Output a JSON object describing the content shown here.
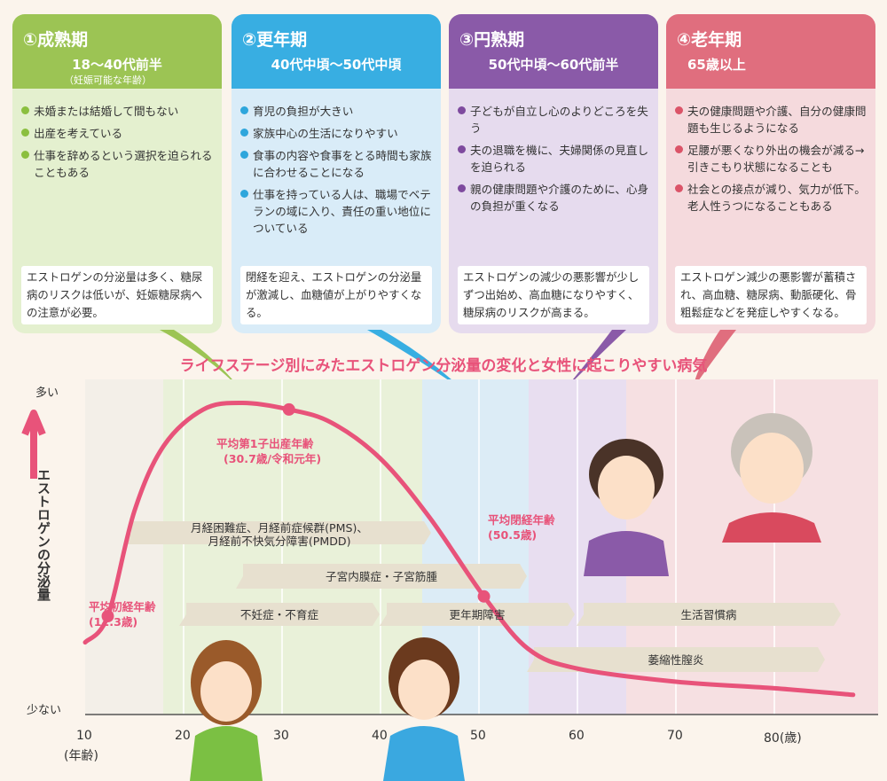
{
  "panels": [
    {
      "stage": "①成熟期",
      "age": "18～40代前半",
      "sub": "（妊娠可能な年齢）",
      "items": [
        "未婚または結婚して間もない",
        "出産を考えている",
        "仕事を辞めるという選択を迫られることもある"
      ],
      "note": "エストロゲンの分泌量は多く、糖尿病のリスクは低いが、妊娠糖尿病への注意が必要。",
      "color": "#9cc454"
    },
    {
      "stage": "②更年期",
      "age": "40代中頃～50代中頃",
      "items": [
        "育児の負担が大きい",
        "家族中心の生活になりやすい",
        "食事の内容や食事をとる時間も家族に合わせることになる",
        "仕事を持っている人は、職場でベテランの域に入り、責任の重い地位についている"
      ],
      "note": "閉経を迎え、エストロゲンの分泌量が激減し、血糖値が上がりやすくなる。",
      "color": "#38aee2"
    },
    {
      "stage": "③円熟期",
      "age": "50代中頃～60代前半",
      "items": [
        "子どもが自立し心のよりどころを失う",
        "夫の退職を機に、夫婦関係の見直しを迫られる",
        "親の健康問題や介護のために、心身の負担が重くなる"
      ],
      "note": "エストロゲンの減少の悪影響が少しずつ出始め、高血糖になりやすく、糖尿病のリスクが高まる。",
      "color": "#8a5aa8"
    },
    {
      "stage": "④老年期",
      "age": "65歳以上",
      "items": [
        "夫の健康問題や介護、自分の健康問題も生じるようになる",
        "足腰が悪くなり外出の機会が減る→引きこもり状態になることも",
        "社会との接点が減り、気力が低下。老人性うつになることもある"
      ],
      "note": "エストロゲン減少の悪影響が蓄積され、高血糖、糖尿病、動脈硬化、骨粗鬆症などを発症しやすくなる。",
      "color": "#e06e7e"
    }
  ],
  "chart_title": "ライフステージ別にみたエストロゲン分泌量の変化と女性に起こりやすい病気",
  "y_axis": {
    "title": "エストロゲンの分泌量",
    "high": "多い",
    "low": "少ない"
  },
  "x_axis": {
    "ticks": [
      "10",
      "20",
      "30",
      "40",
      "50",
      "60",
      "70",
      "80(歳)"
    ],
    "unit": "(年齢)"
  },
  "annotations": {
    "menarche": {
      "label": "平均初経年齢",
      "value": "(12.3歳)"
    },
    "first_birth": {
      "label": "平均第1子出産年齢",
      "value": "(30.7歳/令和元年)"
    },
    "menopause": {
      "label": "平均閉経年齢",
      "value": "(50.5歳)"
    }
  },
  "diseases": {
    "d1a": "月経困難症、月経前症候群(PMS)、",
    "d1b": "月経前不快気分障害(PMDD)",
    "d2": "子宮内膜症・子宮筋腫",
    "d3": "不妊症・不育症",
    "d4": "更年期障害",
    "d5": "生活習慣病",
    "d6": "萎縮性膣炎"
  },
  "chart_data": {
    "type": "area",
    "x": [
      10,
      12.3,
      15,
      18,
      22,
      26,
      30.7,
      35,
      40,
      45,
      50.5,
      55,
      60,
      70,
      80,
      88
    ],
    "y": [
      0.22,
      0.3,
      0.62,
      0.82,
      0.93,
      0.95,
      0.93,
      0.89,
      0.78,
      0.6,
      0.36,
      0.2,
      0.14,
      0.1,
      0.08,
      0.06
    ],
    "xlabel": "(年齢)",
    "ylabel": "エストロゲンの分泌量",
    "markers": [
      12.3,
      30.7,
      50.5
    ]
  }
}
